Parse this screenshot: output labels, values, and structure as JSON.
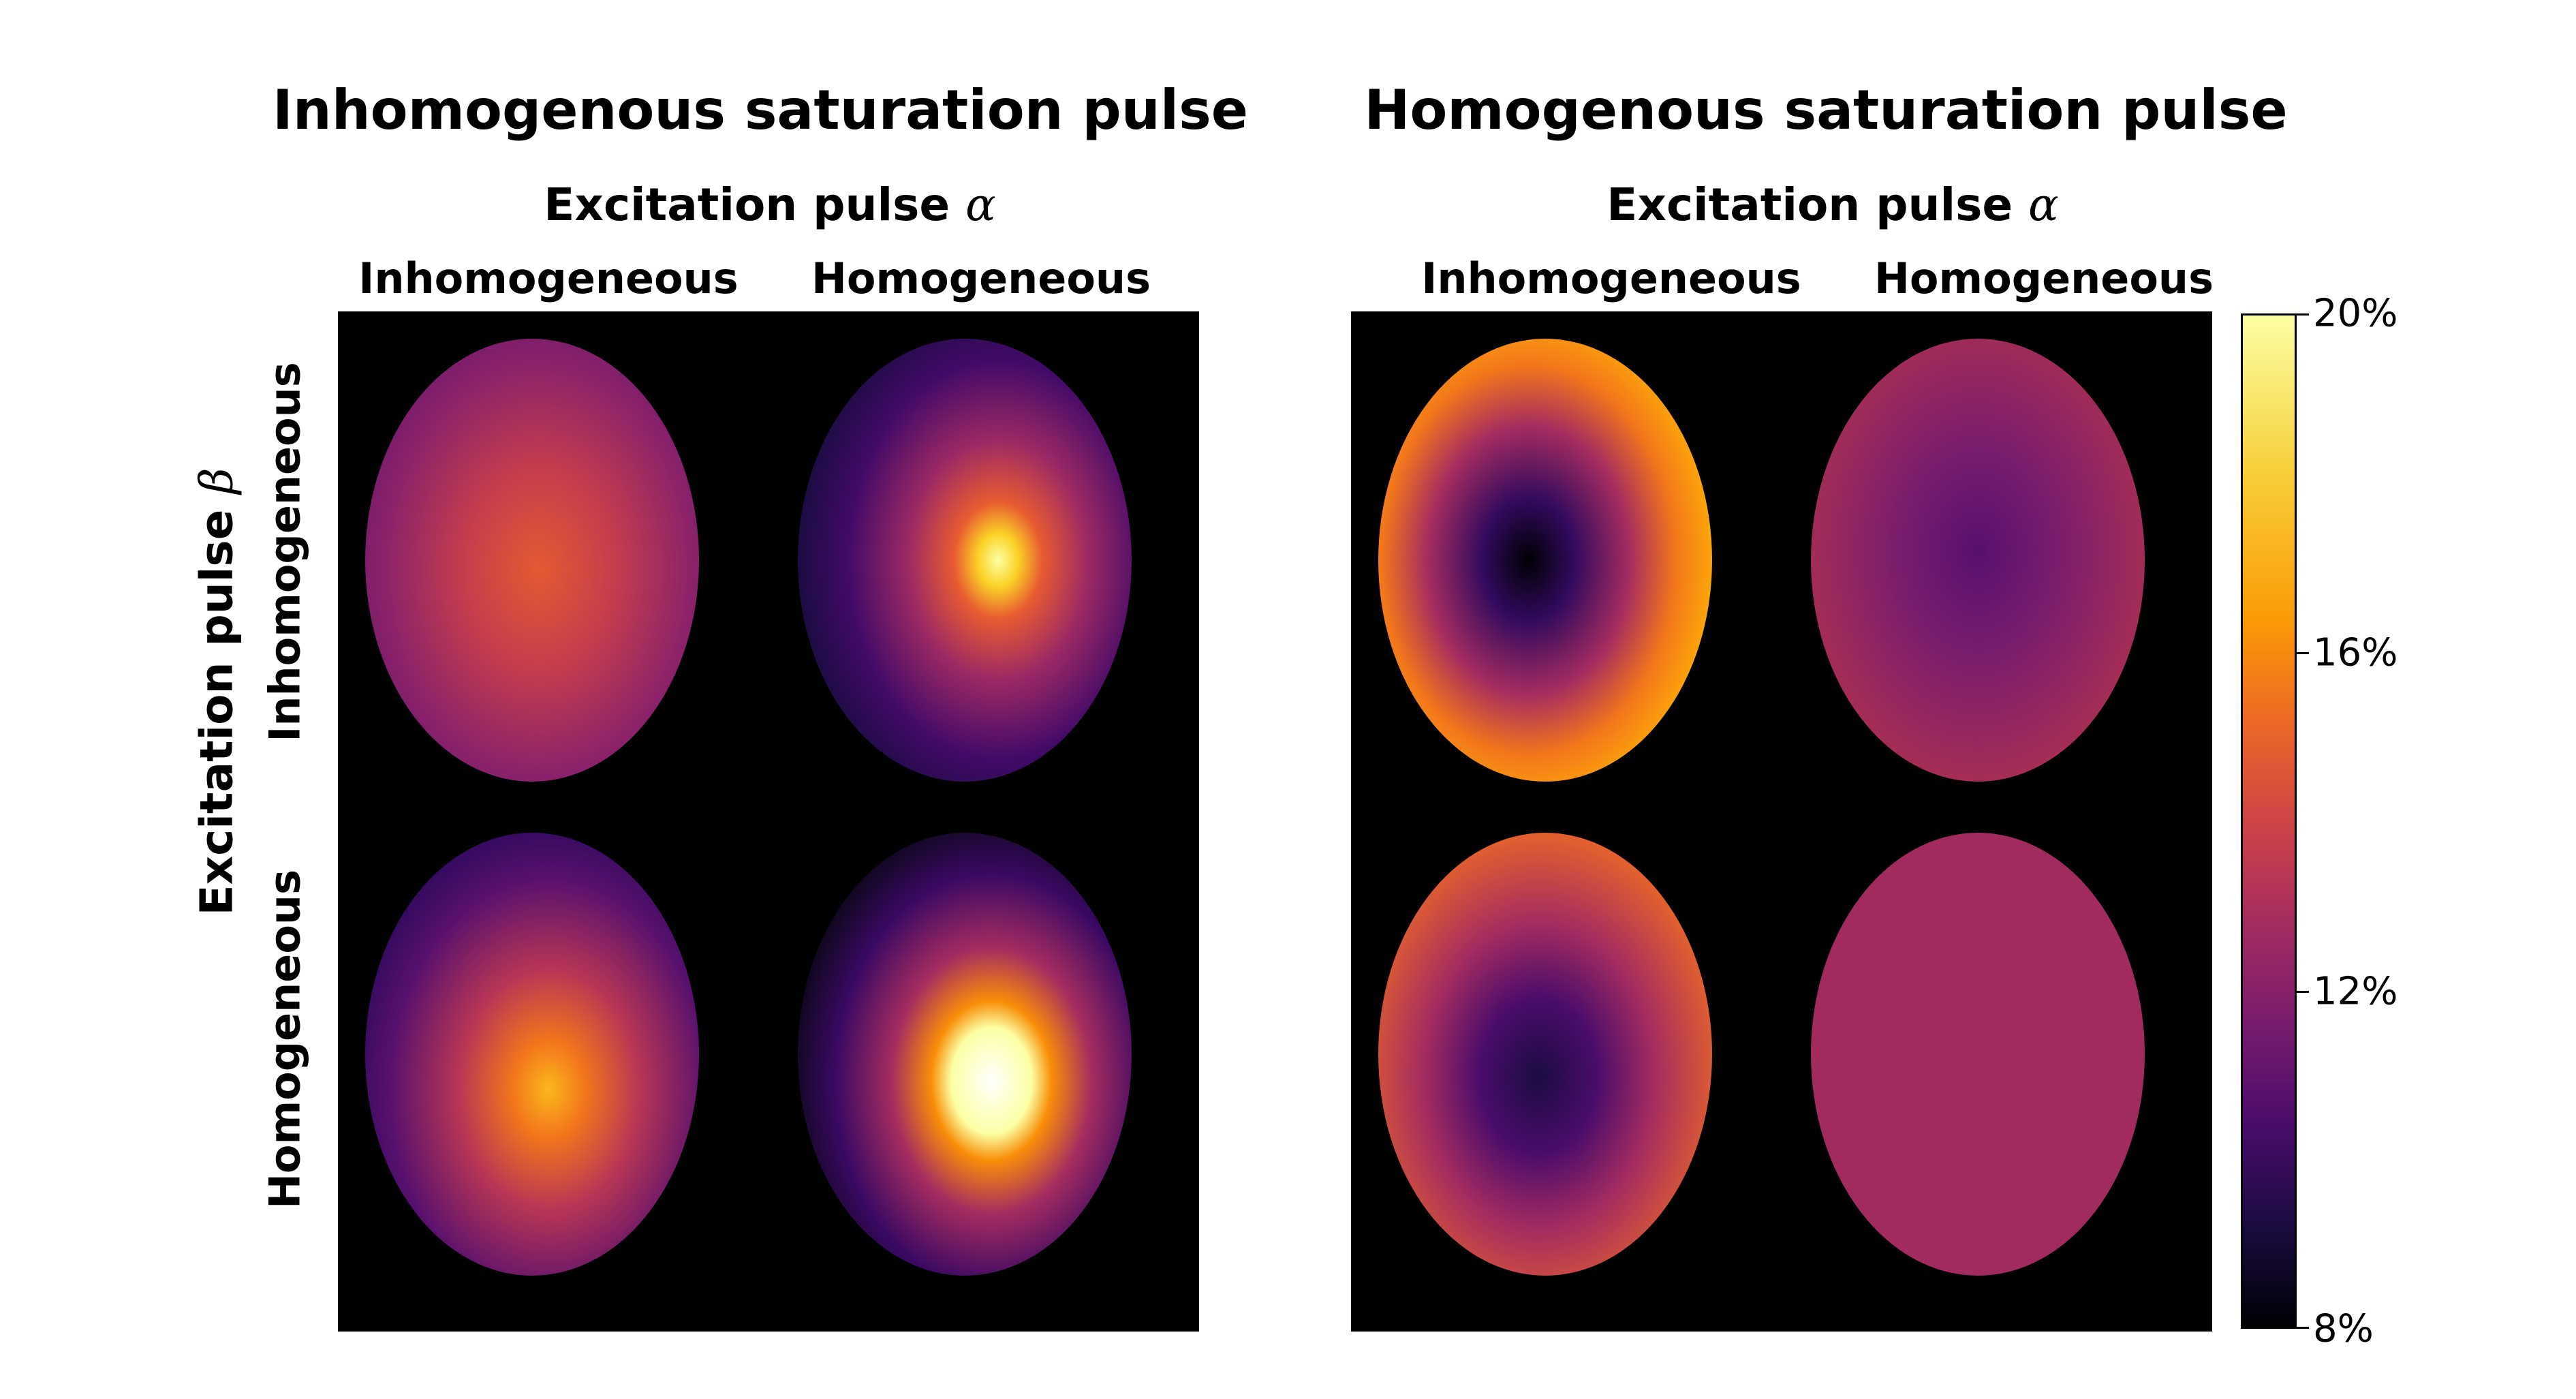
{
  "titles": {
    "left": "Inhomogenous saturation pulse",
    "right": "Homogenous saturation pulse"
  },
  "subtitles": {
    "left": "Excitation pulse",
    "right": "Excitation pulse",
    "symbol": "α"
  },
  "columns": [
    "Inhomogeneous",
    "Homogeneous",
    "Inhomogeneous",
    "Homogeneous"
  ],
  "rows": [
    "Inhomogeneous",
    "Homogeneous"
  ],
  "y_axis": {
    "label": "Excitation pulse",
    "symbol": "β"
  },
  "colorbar": {
    "colormap": "inferno",
    "range": [
      8,
      20
    ],
    "ticks": [
      "20%",
      "16%",
      "12%",
      "8%"
    ]
  },
  "maps": [
    {
      "row": "Inhomogeneous",
      "column": "Inhomogeneous",
      "saturation": "Inhomogenous",
      "pattern": "central orange peak, cooler periphery"
    },
    {
      "row": "Inhomogeneous",
      "column": "Homogeneous",
      "saturation": "Inhomogenous",
      "pattern": "bright white-yellow central peak, dark crescent"
    },
    {
      "row": "Homogeneous",
      "column": "Inhomogeneous",
      "saturation": "Inhomogenous",
      "pattern": "orange-yellow central peak"
    },
    {
      "row": "Homogeneous",
      "column": "Homogeneous",
      "saturation": "Inhomogenous",
      "pattern": "saturated white central peak, dark crescent"
    },
    {
      "row": "Inhomogeneous",
      "column": "Inhomogeneous",
      "saturation": "Homogenous",
      "pattern": "dark center, bright orange rim"
    },
    {
      "row": "Inhomogeneous",
      "column": "Homogeneous",
      "saturation": "Homogenous",
      "pattern": "mild purple center"
    },
    {
      "row": "Homogeneous",
      "column": "Inhomogeneous",
      "saturation": "Homogenous",
      "pattern": "dark center, orange rim"
    },
    {
      "row": "Homogeneous",
      "column": "Homogeneous",
      "saturation": "Homogenous",
      "pattern": "uniform magenta"
    }
  ]
}
